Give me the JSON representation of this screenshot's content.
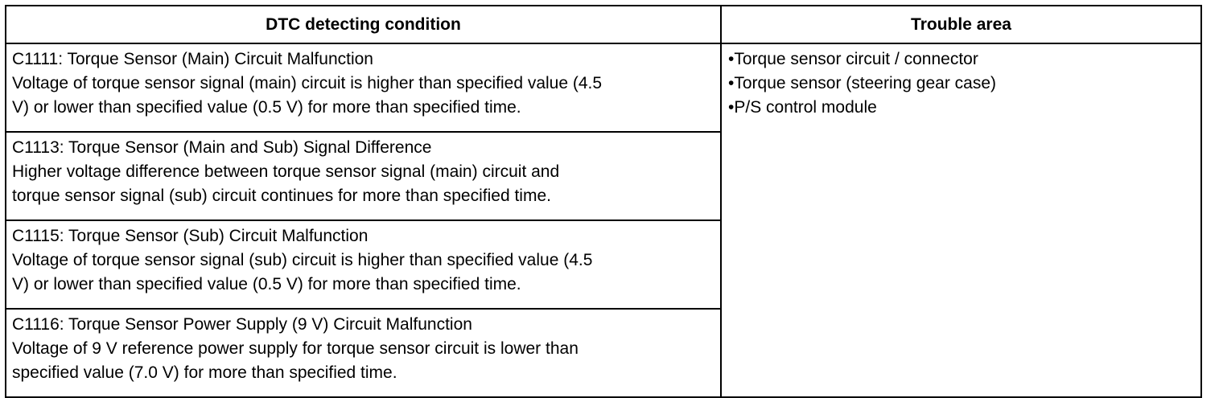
{
  "table": {
    "headers": {
      "condition": "DTC detecting condition",
      "area": "Trouble area"
    },
    "rows": [
      {
        "code_title": "C1111: Torque Sensor (Main) Circuit Malfunction",
        "line1": "Voltage of torque sensor signal (main) circuit is higher than specified value (4.5",
        "line2": "V) or lower than specified value (0.5 V) for more than specified time."
      },
      {
        "code_title": "C1113: Torque Sensor (Main and Sub) Signal Difference",
        "line1": "Higher voltage difference between torque sensor signal (main) circuit and",
        "line2": "torque sensor signal (sub) circuit continues for more than specified time."
      },
      {
        "code_title": "C1115: Torque Sensor (Sub) Circuit Malfunction",
        "line1": "Voltage of torque sensor signal (sub) circuit is higher than specified value (4.5",
        "line2": "V) or lower than specified value (0.5 V) for more than specified time."
      },
      {
        "code_title": "C1116: Torque Sensor Power Supply (9 V) Circuit Malfunction",
        "line1": "Voltage of 9 V reference power supply for torque sensor circuit is lower than",
        "line2": "specified value (7.0 V) for more than specified time."
      }
    ],
    "trouble_area": {
      "bullet": "•",
      "items": [
        "Torque sensor circuit / connector",
        "Torque sensor (steering gear case)",
        "P/S control module"
      ]
    }
  }
}
